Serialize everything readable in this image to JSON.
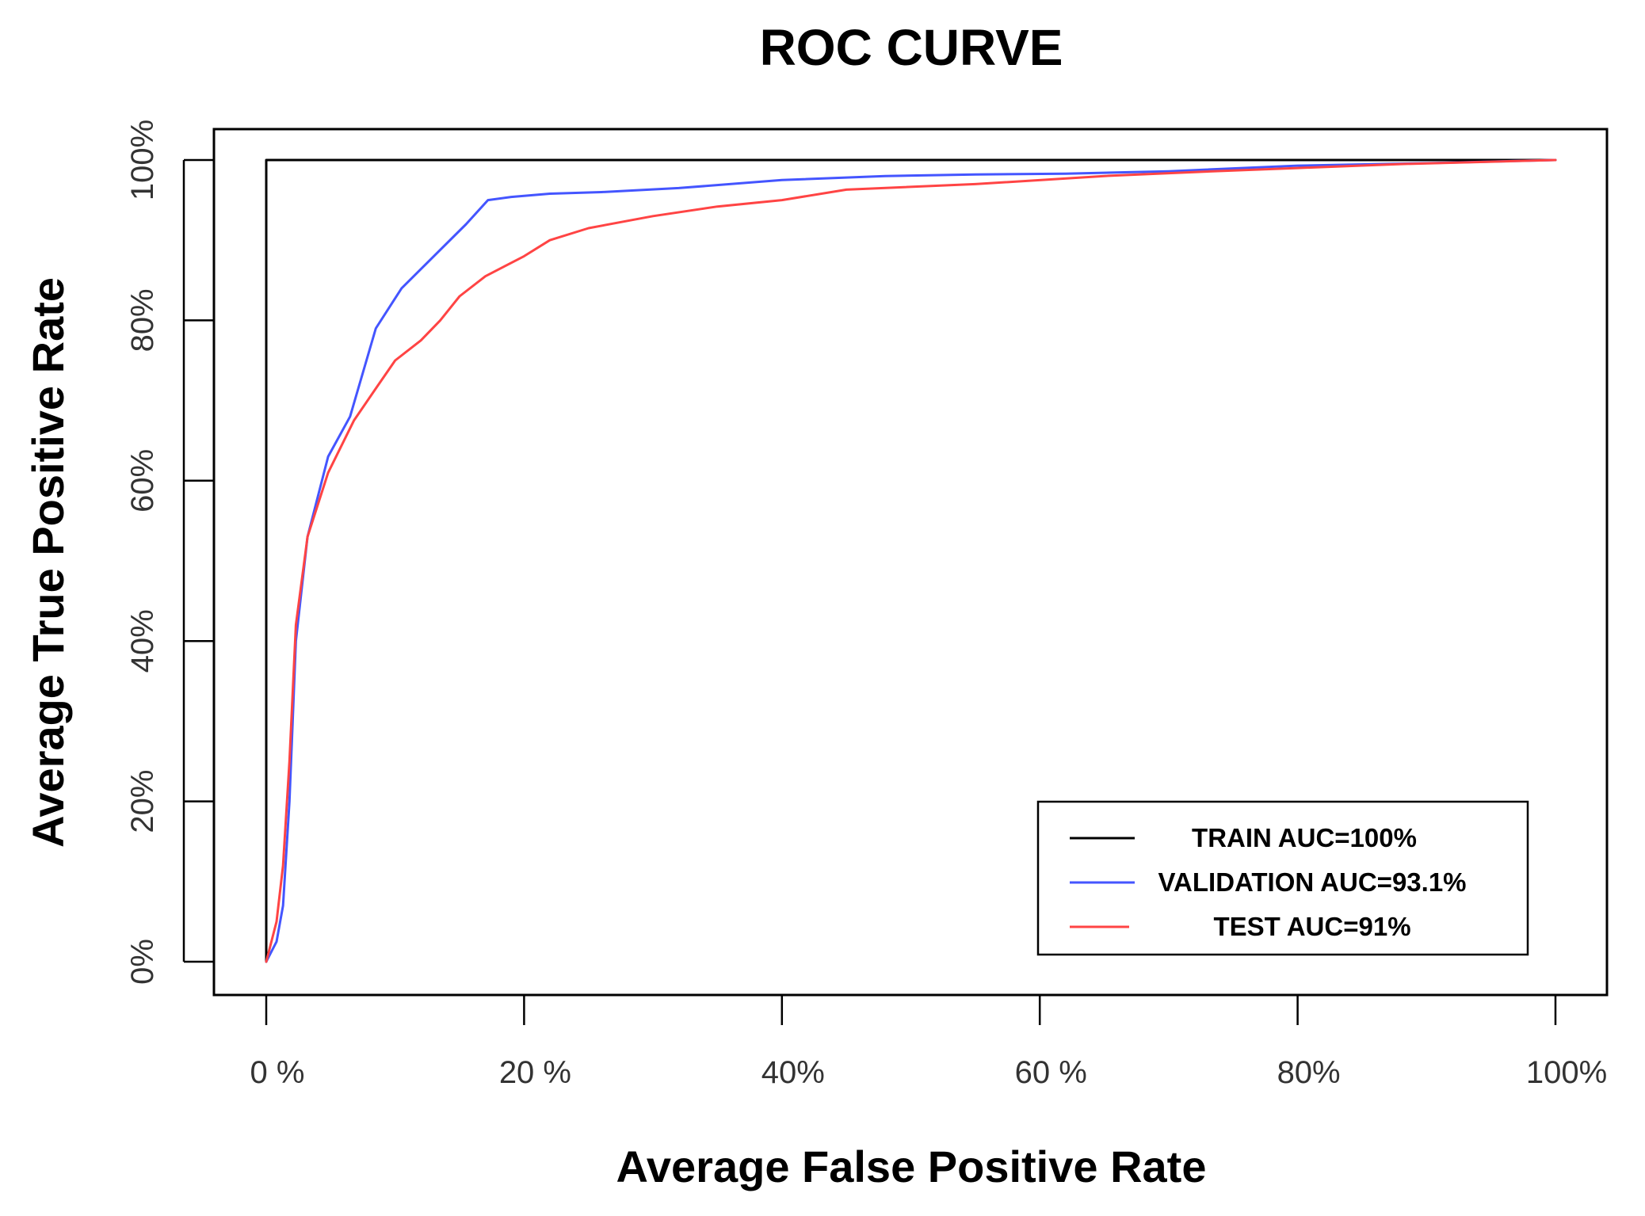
{
  "chart_data": {
    "type": "line",
    "title": "ROC CURVE",
    "xlabel": "Average False Positive Rate",
    "ylabel": "Average True Positive Rate",
    "xlim": [
      0,
      100
    ],
    "ylim": [
      0,
      100
    ],
    "x_ticks": [
      {
        "value": 0,
        "label": "0 %"
      },
      {
        "value": 20,
        "label": "20 %"
      },
      {
        "value": 40,
        "label": "40%"
      },
      {
        "value": 60,
        "label": "60 %"
      },
      {
        "value": 80,
        "label": "80%"
      },
      {
        "value": 100,
        "label": "100%"
      }
    ],
    "y_ticks": [
      {
        "value": 0,
        "label": "0%"
      },
      {
        "value": 20,
        "label": "20%"
      },
      {
        "value": 40,
        "label": "40%"
      },
      {
        "value": 60,
        "label": "60%"
      },
      {
        "value": 80,
        "label": "80%"
      },
      {
        "value": 100,
        "label": "100%"
      }
    ],
    "grid": false,
    "legend_position": "bottom-right",
    "series": [
      {
        "name": "TRAIN AUC=100%",
        "color": "#000000",
        "x": [
          0,
          0,
          100
        ],
        "y": [
          0,
          100,
          100
        ]
      },
      {
        "name": "VALIDATION AUC=93.1%",
        "color": "#4455ff",
        "x": [
          0,
          0.8,
          1.3,
          1.8,
          2.3,
          3.2,
          4.8,
          6.5,
          8.5,
          10.5,
          13,
          15.5,
          17.2,
          19,
          22,
          26,
          32,
          40,
          48,
          55,
          62,
          70,
          80,
          90,
          100
        ],
        "y": [
          0,
          2.5,
          7,
          20,
          40,
          53,
          63,
          68,
          79,
          84,
          88,
          92,
          95,
          95.4,
          95.8,
          96,
          96.5,
          97.5,
          98,
          98.2,
          98.3,
          98.6,
          99.3,
          99.6,
          100
        ]
      },
      {
        "name": "TEST AUC=91%",
        "color": "#ff4444",
        "x": [
          0,
          0.8,
          1.3,
          1.8,
          2.3,
          3.2,
          4.8,
          6.8,
          8.5,
          10,
          12,
          13.5,
          15,
          17,
          20,
          22,
          25,
          30,
          35,
          40,
          45,
          55,
          65,
          72,
          80,
          88,
          100
        ],
        "y": [
          0,
          5,
          12,
          25,
          42,
          53,
          61,
          67.5,
          71.5,
          75,
          77.5,
          80,
          83,
          85.5,
          88,
          90,
          91.5,
          93,
          94.2,
          95,
          96.3,
          97,
          98,
          98.5,
          99,
          99.5,
          100
        ]
      }
    ]
  }
}
